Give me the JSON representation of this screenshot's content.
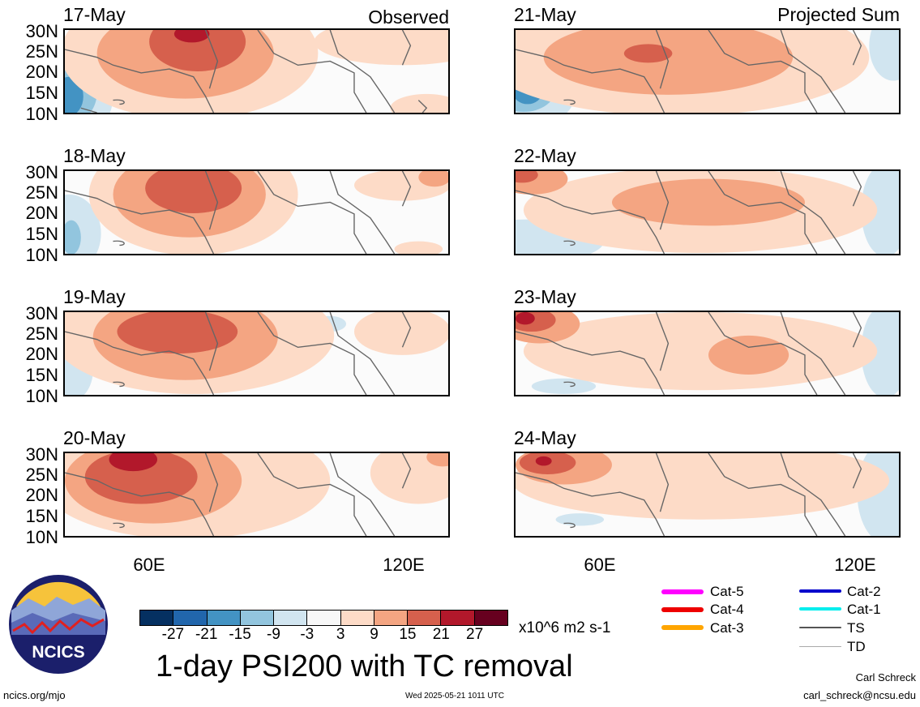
{
  "panels_left": [
    {
      "date": "17-May",
      "corner": "Observed"
    },
    {
      "date": "18-May",
      "corner": ""
    },
    {
      "date": "19-May",
      "corner": ""
    },
    {
      "date": "20-May",
      "corner": ""
    }
  ],
  "panels_right": [
    {
      "date": "21-May",
      "corner": "Projected Sum"
    },
    {
      "date": "22-May",
      "corner": ""
    },
    {
      "date": "23-May",
      "corner": ""
    },
    {
      "date": "24-May",
      "corner": ""
    }
  ],
  "lat_labels": [
    "30N",
    "25N",
    "20N",
    "15N",
    "10N"
  ],
  "lon_labels": [
    "60E",
    "120E"
  ],
  "colorbar": {
    "colors": [
      "#053061",
      "#2166ac",
      "#4393c3",
      "#92c5de",
      "#d1e5f0",
      "#f7f7f7",
      "#fddbc7",
      "#f4a582",
      "#d6604d",
      "#b2182b",
      "#67001f"
    ],
    "labels": [
      "-27",
      "-21",
      "-15",
      "-9",
      "-3",
      "3",
      "9",
      "15",
      "21",
      "27"
    ],
    "units": "x10^6 m2 s-1"
  },
  "title": "1-day PSI200 with TC removal",
  "logo_text": "NCICS",
  "footer": {
    "url": "ncics.org/mjo",
    "timestamp": "Wed 2025-05-21 1011 UTC",
    "author": "Carl Schreck",
    "email": "carl_schreck@ncsu.edu"
  },
  "tc_legend": [
    {
      "label": "Cat-5",
      "color": "#ff00ff"
    },
    {
      "label": "Cat-4",
      "color": "#ee0000"
    },
    {
      "label": "Cat-3",
      "color": "#ffa500"
    },
    {
      "label": "Cat-2",
      "color": "#0000cc"
    },
    {
      "label": "Cat-1",
      "color": "#00eeee"
    },
    {
      "label": "TS",
      "color": "#555555"
    },
    {
      "label": "TD",
      "color": "#aaaaaa"
    }
  ]
}
